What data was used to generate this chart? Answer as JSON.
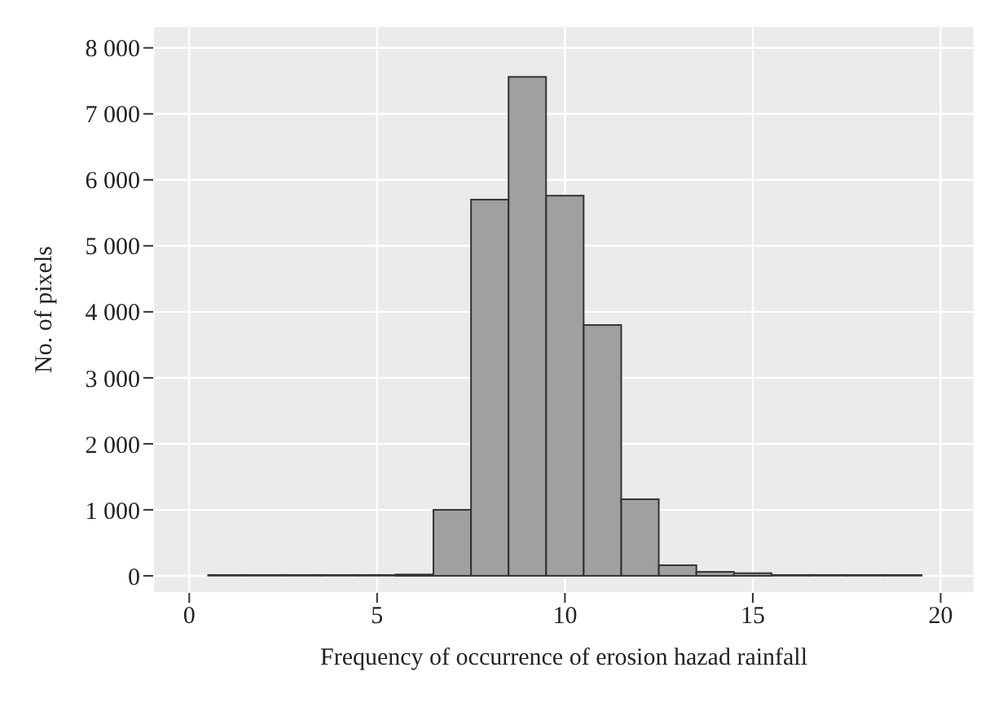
{
  "chart_data": {
    "type": "histogram",
    "xlabel": "Frequency of occurrence of erosion hazad rainfall",
    "ylabel": "No. of pixels",
    "bins": [
      0.5,
      1.5,
      2.5,
      3.5,
      4.5,
      5.5,
      6.5,
      7.5,
      8.5,
      9.5,
      10.5,
      11.5,
      12.5,
      13.5,
      14.5,
      15.5,
      16.5,
      17.5,
      18.5,
      19.5
    ],
    "values": [
      0,
      0,
      0,
      0,
      0,
      20,
      1000,
      5700,
      7560,
      5760,
      3800,
      1160,
      160,
      60,
      40,
      10,
      10,
      0,
      0
    ],
    "color": "#a0a0a0",
    "xlim": [
      -0.96,
      20.9
    ],
    "xticks": [
      0,
      5,
      10,
      15,
      20
    ],
    "ylim": [
      -260,
      8330
    ],
    "yticks": [
      {
        "value": 0,
        "label": "0"
      },
      {
        "value": 1000,
        "label": "1 000"
      },
      {
        "value": 2000,
        "label": "2 000"
      },
      {
        "value": 3000,
        "label": "3 000"
      },
      {
        "value": 4000,
        "label": "4 000"
      },
      {
        "value": 5000,
        "label": "5 000"
      },
      {
        "value": 6000,
        "label": "6 000"
      },
      {
        "value": 7000,
        "label": "7 000"
      },
      {
        "value": 8000,
        "label": "8 000"
      }
    ],
    "grid": true
  }
}
